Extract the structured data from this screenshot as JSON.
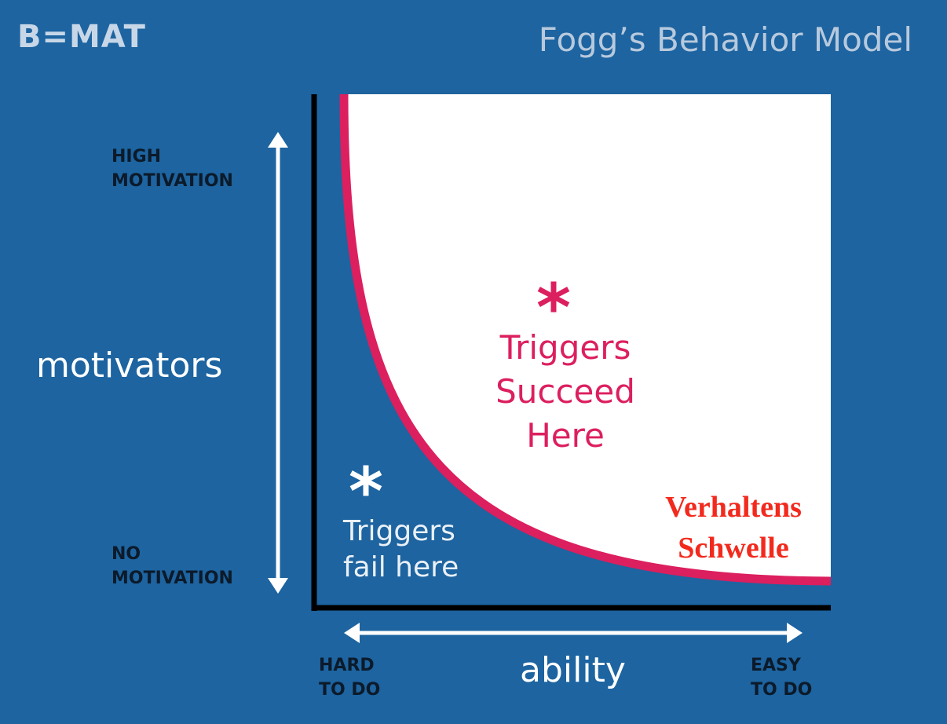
{
  "header": {
    "brand": "B=MAT",
    "title": "Fogg’s Behavior Model"
  },
  "y_axis": {
    "label": "motivators",
    "top_line1": "HIGH",
    "top_line2": "MOTIVATION",
    "bottom_line1": "NO",
    "bottom_line2": "MOTIVATION"
  },
  "x_axis": {
    "label": "ability",
    "left_line1": "HARD",
    "left_line2": "TO DO",
    "right_line1": "EASY",
    "right_line2": "TO DO"
  },
  "zones": {
    "success_star": "*",
    "success_line1": "Triggers",
    "success_line2": "Succeed",
    "success_line3": "Here",
    "fail_star": "*",
    "fail_line1": "Triggers",
    "fail_line2": "fail here"
  },
  "annotation": {
    "line1": "Verhaltens",
    "line2": "Schwelle"
  },
  "colors": {
    "background": "#1d64a0",
    "curve": "#dc1f5e",
    "annotation": "#f22a1d",
    "axis": "#000000",
    "arrows": "#ffffff"
  }
}
